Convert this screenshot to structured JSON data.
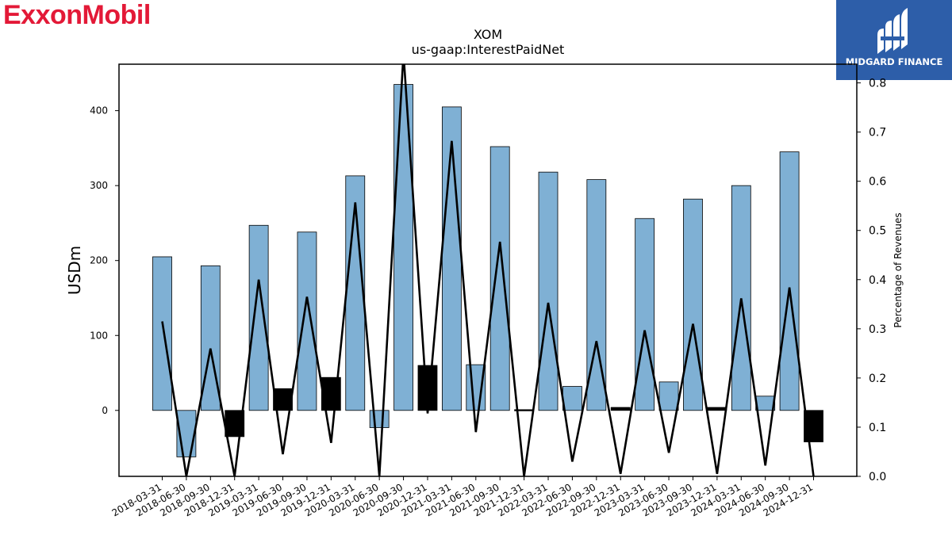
{
  "branding": {
    "left_logo_text": "ExxonMobil",
    "right_logo_text": "MIDGARD FINANCE",
    "right_logo_bg": "#2d5ea9",
    "left_logo_color": "#e31937"
  },
  "chart_data": {
    "type": "bar",
    "title": "XOM",
    "subtitle": "us-gaap:InterestPaidNet",
    "ylabel": "USDm",
    "y2label": "Percentage of Revenues",
    "ylim": [
      -88,
      462
    ],
    "y2lim": [
      0.0,
      0.838
    ],
    "yticks": [
      0,
      100,
      200,
      300,
      400
    ],
    "y2ticks": [
      0.0,
      0.1,
      0.2,
      0.3,
      0.4,
      0.5,
      0.6,
      0.7,
      0.8
    ],
    "categories": [
      "2018-03-31",
      "2018-06-30",
      "2018-09-30",
      "2018-12-31",
      "2019-03-31",
      "2019-06-30",
      "2019-09-30",
      "2019-12-31",
      "2020-03-31",
      "2020-06-30",
      "2020-09-30",
      "2020-12-31",
      "2021-03-31",
      "2021-06-30",
      "2021-09-30",
      "2021-12-31",
      "2022-03-31",
      "2022-06-30",
      "2022-09-30",
      "2022-12-31",
      "2023-03-31",
      "2023-06-30",
      "2023-09-30",
      "2023-12-31",
      "2024-03-31",
      "2024-06-30",
      "2024-09-30",
      "2024-12-31"
    ],
    "series": [
      {
        "values": [
          205,
          -62,
          193,
          -35,
          247,
          29,
          238,
          44,
          313,
          -23,
          435,
          60,
          405,
          61,
          352,
          1,
          318,
          32,
          308,
          4,
          256,
          38,
          282,
          4,
          300,
          19,
          345,
          -42
        ]
      },
      {
        "values": [
          0.315,
          0.0,
          0.26,
          0.0,
          0.4,
          0.045,
          0.365,
          0.068,
          0.557,
          0.0,
          0.86,
          0.128,
          0.682,
          0.09,
          0.477,
          0.0,
          0.353,
          0.03,
          0.275,
          0.005,
          0.297,
          0.048,
          0.31,
          0.005,
          0.362,
          0.022,
          0.384,
          0.0
        ]
      }
    ],
    "bar_colors": {
      "positive": "#7fb0d4",
      "inverted": "#000000"
    },
    "line_color": "#000000"
  }
}
